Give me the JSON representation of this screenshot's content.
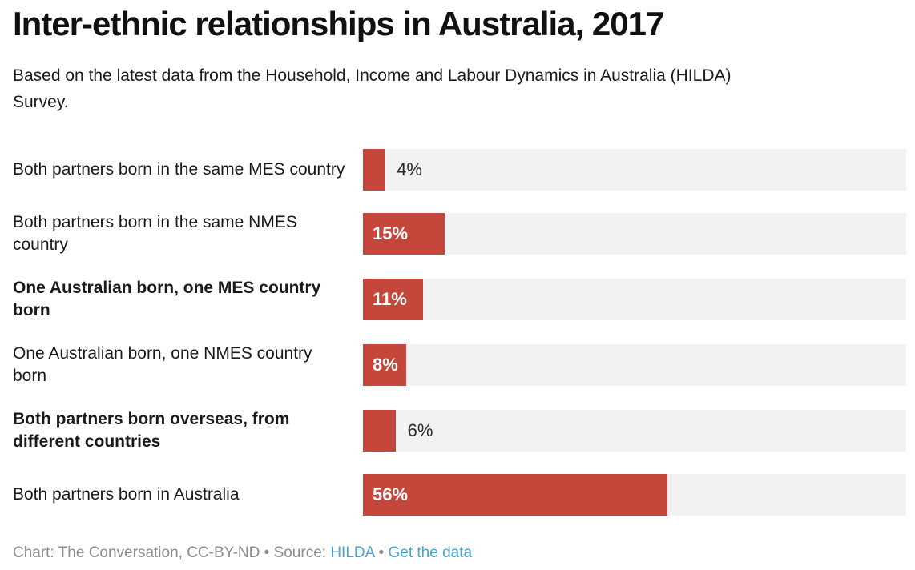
{
  "header": {
    "title": "Inter-ethnic relationships in Australia, 2017",
    "subtitle": "Based on the latest data from the Household, Income and Labour Dynamics in Australia (HILDA) Survey."
  },
  "chart_data": {
    "type": "bar",
    "orientation": "horizontal",
    "value_unit": "%",
    "xlim": [
      0,
      100
    ],
    "grid": false,
    "legend": false,
    "bar_color": "#c5473c",
    "track_color": "#f2f2f2",
    "categories": [
      "Both partners born in the same MES country",
      "Both partners born in the same NMES country",
      "One Australian born, one MES country born",
      "One Australian born, one NMES country born",
      "Both partners born overseas, from different countries",
      "Both partners born in Australia"
    ],
    "values": [
      4,
      15,
      11,
      8,
      6,
      56
    ],
    "value_labels": [
      "4%",
      "15%",
      "11%",
      "8%",
      "6%",
      "56%"
    ],
    "category_bold": [
      false,
      false,
      true,
      false,
      true,
      false
    ],
    "value_label_position": [
      "outside",
      "inside",
      "inside",
      "inside",
      "outside",
      "inside"
    ]
  },
  "footer": {
    "credit": "Chart: The Conversation, CC-BY-ND",
    "bullet": "•",
    "source_label": "Source:",
    "source_link": "HILDA",
    "get_data_link": "Get the data"
  },
  "colors": {
    "title": "#111111",
    "text": "#1a1a1a",
    "value_outside": "#2b2b2b",
    "value_inside": "#ffffff",
    "footer_text": "#8d8d8d",
    "link": "#49a2d3"
  }
}
